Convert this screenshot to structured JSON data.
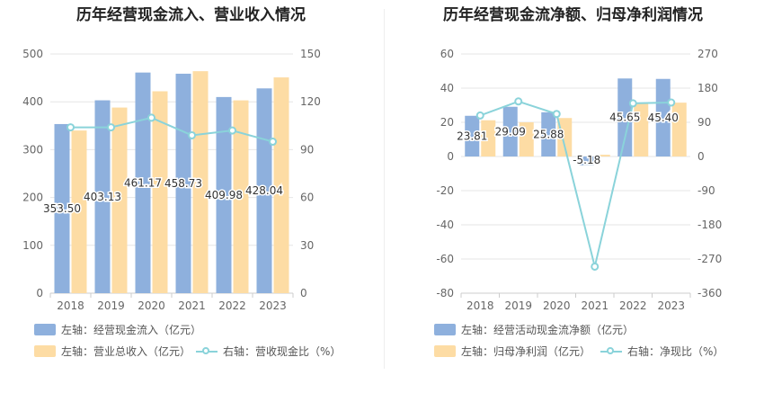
{
  "chart_data": [
    {
      "type": "bar",
      "title": "历年经营现金流入、营业收入情况",
      "categories": [
        "2018",
        "2019",
        "2020",
        "2021",
        "2022",
        "2023"
      ],
      "left_axis": {
        "min": 0,
        "max": 500,
        "ticks": [
          "0",
          "100",
          "200",
          "300",
          "400",
          "500"
        ]
      },
      "right_axis": {
        "min": 0,
        "max": 150,
        "ticks": [
          "0",
          "30",
          "60",
          "90",
          "120",
          "150"
        ]
      },
      "series": [
        {
          "name": "左轴：经营现金流入（亿元）",
          "kind": "bar",
          "axis": "left",
          "color": "#8eb0dd",
          "values": [
            353.5,
            403.13,
            461.17,
            458.73,
            409.98,
            428.04
          ],
          "labels": [
            "353.50",
            "403.13",
            "461.17",
            "458.73",
            "409.98",
            "428.04"
          ]
        },
        {
          "name": "左轴：营业总收入（亿元）",
          "kind": "bar",
          "axis": "left",
          "color": "#fddca4",
          "values": [
            340,
            388,
            422,
            464,
            403,
            451
          ]
        },
        {
          "name": "右轴：营收现金比（%）",
          "kind": "line",
          "axis": "right",
          "color": "#8ad3da",
          "values": [
            104,
            104,
            110,
            99,
            102,
            95
          ]
        }
      ],
      "grid": true,
      "legend_position": "bottom"
    },
    {
      "type": "bar",
      "title": "历年经营现金流净额、归母净利润情况",
      "categories": [
        "2018",
        "2019",
        "2020",
        "2021",
        "2022",
        "2023"
      ],
      "left_axis": {
        "min": -80,
        "max": 60,
        "ticks": [
          "-80",
          "-60",
          "-40",
          "-20",
          "0",
          "20",
          "40",
          "60"
        ]
      },
      "right_axis": {
        "min": -360,
        "max": 270,
        "ticks": [
          "-360",
          "-270",
          "-180",
          "-90",
          "0",
          "90",
          "180",
          "270"
        ]
      },
      "series": [
        {
          "name": "左轴：经营活动现金流净额（亿元）",
          "kind": "bar",
          "axis": "left",
          "color": "#8eb0dd",
          "values": [
            23.81,
            29.09,
            25.88,
            -5.18,
            45.65,
            45.4
          ],
          "labels": [
            "23.81",
            "29.09",
            "25.88",
            "-5.18",
            "45.65",
            "45.40"
          ]
        },
        {
          "name": "左轴：归母净利润（亿元）",
          "kind": "bar",
          "axis": "left",
          "color": "#fddca4",
          "values": [
            21.2,
            20.0,
            22.5,
            1.0,
            31.5,
            31.5
          ]
        },
        {
          "name": "右轴：净现比（%）",
          "kind": "line",
          "axis": "right",
          "color": "#8ad3da",
          "values": [
            108,
            145,
            112,
            -290,
            140,
            142
          ]
        }
      ],
      "grid": true,
      "legend_position": "bottom"
    }
  ]
}
